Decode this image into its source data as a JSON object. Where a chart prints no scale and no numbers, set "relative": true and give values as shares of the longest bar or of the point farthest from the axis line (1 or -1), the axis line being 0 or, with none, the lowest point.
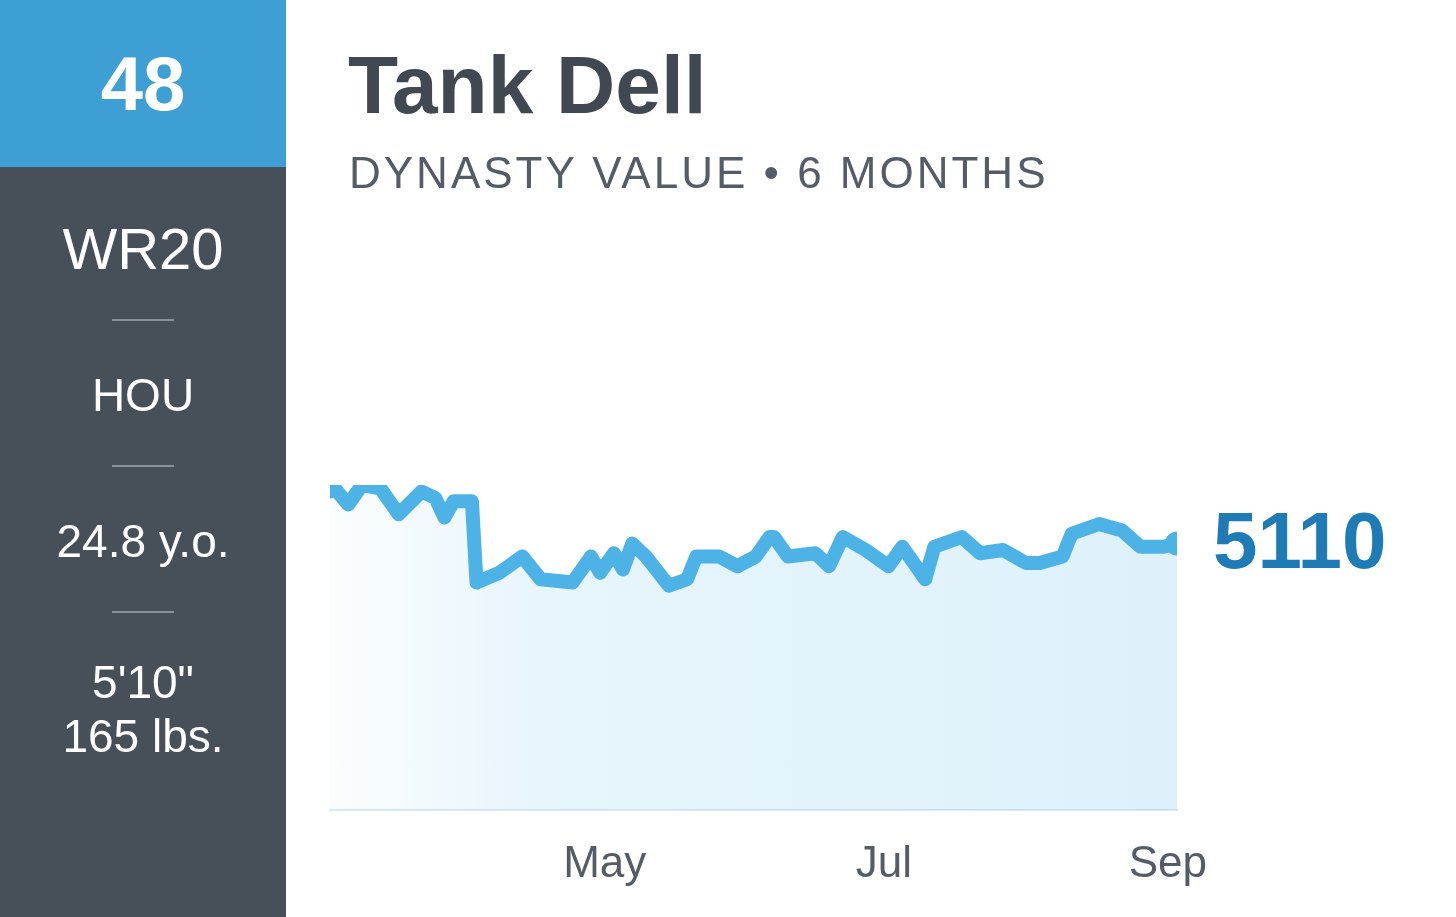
{
  "chart_data": [
    {
      "type": "other",
      "title": "48",
      "annotations": [
        "WR20",
        "HOU",
        "24.8 y.o.",
        "5'10\"",
        "165 lbs."
      ]
    },
    {
      "type": "area",
      "title": "Tank Dell",
      "subtitle": "DYNASTY VALUE • 6 MONTHS",
      "relative": true,
      "x": [
        "--03-02",
        "--03-03",
        "--03-06",
        "--03-09",
        "--03-13",
        "--03-17",
        "--03-22",
        "--03-25",
        "--03-27",
        "--03-29",
        "--04-02",
        "--04-03",
        "--04-08",
        "--04-13",
        "--04-17",
        "--04-24",
        "--04-28",
        "--04-30",
        "--05-03",
        "--05-05",
        "--05-07",
        "--05-10",
        "--05-15",
        "--05-19",
        "--05-21",
        "--05-26",
        "--05-30",
        "--06-03",
        "--06-06",
        "--06-07",
        "--06-10",
        "--06-16",
        "--06-19",
        "--06-22",
        "--06-27",
        "--07-02",
        "--07-05",
        "--07-10",
        "--07-12",
        "--07-18",
        "--07-22",
        "--07-27",
        "--08-01",
        "--08-04",
        "--08-09",
        "--08-11",
        "--08-17",
        "--08-22",
        "--08-26",
        "--08-31",
        "--09-03"
      ],
      "series": [
        {
          "color": "#4db3e6",
          "values": [
            0.98,
            0.99,
            0.94,
            1,
            0.99,
            0.91,
            0.98,
            0.96,
            0.9,
            0.95,
            0.95,
            0.7,
            0.73,
            0.78,
            0.71,
            0.7,
            0.78,
            0.73,
            0.79,
            0.74,
            0.82,
            0.78,
            0.69,
            0.71,
            0.78,
            0.78,
            0.75,
            0.78,
            0.84,
            0.84,
            0.78,
            0.79,
            0.75,
            0.84,
            0.8,
            0.75,
            0.81,
            0.71,
            0.81,
            0.84,
            0.79,
            0.8,
            0.76,
            0.76,
            0.78,
            0.85,
            0.88,
            0.86,
            0.81,
            0.81,
            0.82
          ]
        }
      ],
      "xlim": [
        "--03-02",
        "--09-03"
      ],
      "xticks": [
        {
          "value": "--05-01",
          "label": "May"
        },
        {
          "value": "--07-01",
          "label": "Jul"
        },
        {
          "value": "--09-01",
          "label": "Sep"
        }
      ],
      "grid": false,
      "legend": false,
      "annotations": [
        {
          "text": "5110",
          "x": "--09-03",
          "y": 0.82
        }
      ]
    }
  ]
}
